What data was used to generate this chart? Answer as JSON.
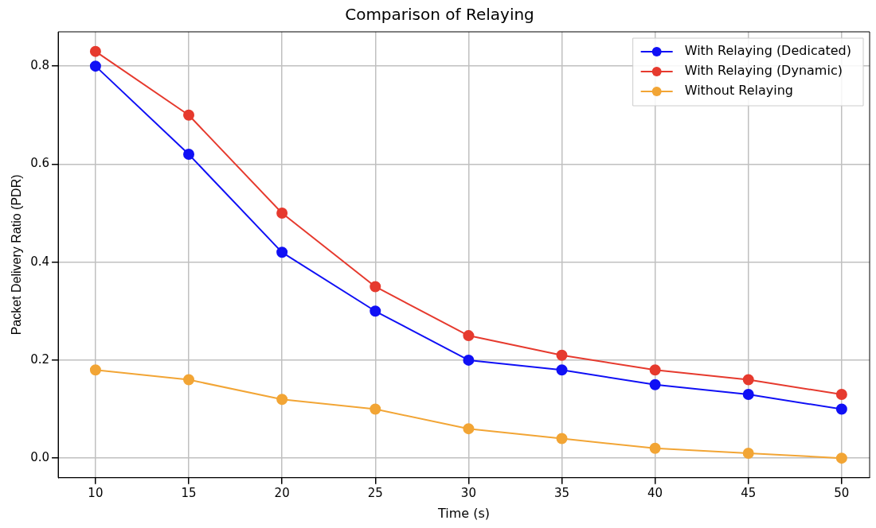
{
  "chart_data": {
    "type": "line",
    "title": "Comparison of Relaying",
    "xlabel": "Time (s)",
    "ylabel": "Packet Delivery Ratio (PDR)",
    "x": [
      10,
      15,
      20,
      25,
      30,
      35,
      40,
      45,
      50
    ],
    "series": [
      {
        "name": "With Relaying (Dedicated)",
        "color": "#1010f5",
        "values": [
          0.8,
          0.62,
          0.42,
          0.3,
          0.2,
          0.18,
          0.15,
          0.13,
          0.1
        ]
      },
      {
        "name": "With Relaying (Dynamic)",
        "color": "#e63a2e",
        "values": [
          0.83,
          0.7,
          0.5,
          0.35,
          0.25,
          0.21,
          0.18,
          0.16,
          0.13
        ]
      },
      {
        "name": "Without Relaying",
        "color": "#f2a535",
        "values": [
          0.18,
          0.16,
          0.12,
          0.1,
          0.06,
          0.04,
          0.02,
          0.01,
          0.0
        ]
      }
    ],
    "xlim": [
      8,
      51.5
    ],
    "xticks": [
      10,
      15,
      20,
      25,
      30,
      35,
      40,
      45,
      50
    ],
    "ylim": [
      -0.04,
      0.87
    ],
    "yticks": [
      {
        "value": 0,
        "label": "0.0"
      },
      0.2,
      0.4,
      0.6,
      0.8
    ],
    "grid": true,
    "legend": "top right",
    "marker": "circle",
    "line_style": "solid"
  }
}
